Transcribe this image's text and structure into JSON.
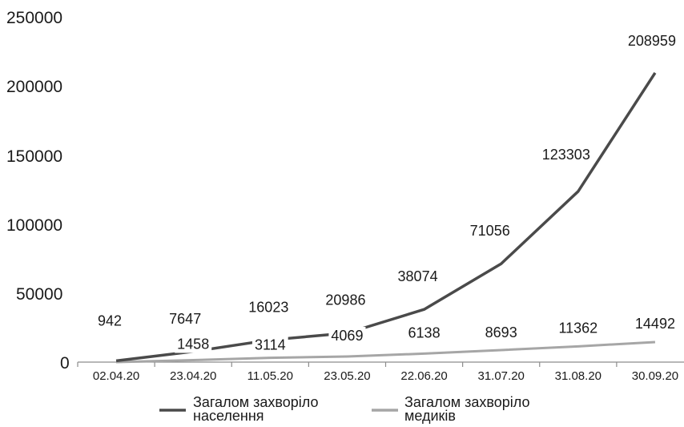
{
  "chart_data": {
    "type": "line",
    "categories": [
      "02.04.20",
      "23.04.20",
      "11.05.20",
      "23.05.20",
      "22.06.20",
      "31.07.20",
      "31.08.20",
      "30.09.20"
    ],
    "series": [
      {
        "name": "Загалом захворіло населення",
        "values": [
          942,
          7647,
          16023,
          20986,
          38074,
          71056,
          123303,
          208959
        ],
        "color": "#4a4a4a"
      },
      {
        "name": "Загалом захворіло медиків",
        "values": [
          0,
          1458,
          3114,
          4069,
          6138,
          8693,
          11362,
          14492
        ],
        "data_labels": [
          "",
          "1458",
          "3114",
          "4069",
          "6138",
          "8693",
          "11362",
          "14492"
        ],
        "color": "#a6a6a6"
      }
    ],
    "y_ticks": [
      "250000",
      "200000",
      "150000",
      "100000",
      "50000",
      "0"
    ],
    "ylim": [
      0,
      250000
    ],
    "grid": false,
    "legend_position": "bottom"
  }
}
